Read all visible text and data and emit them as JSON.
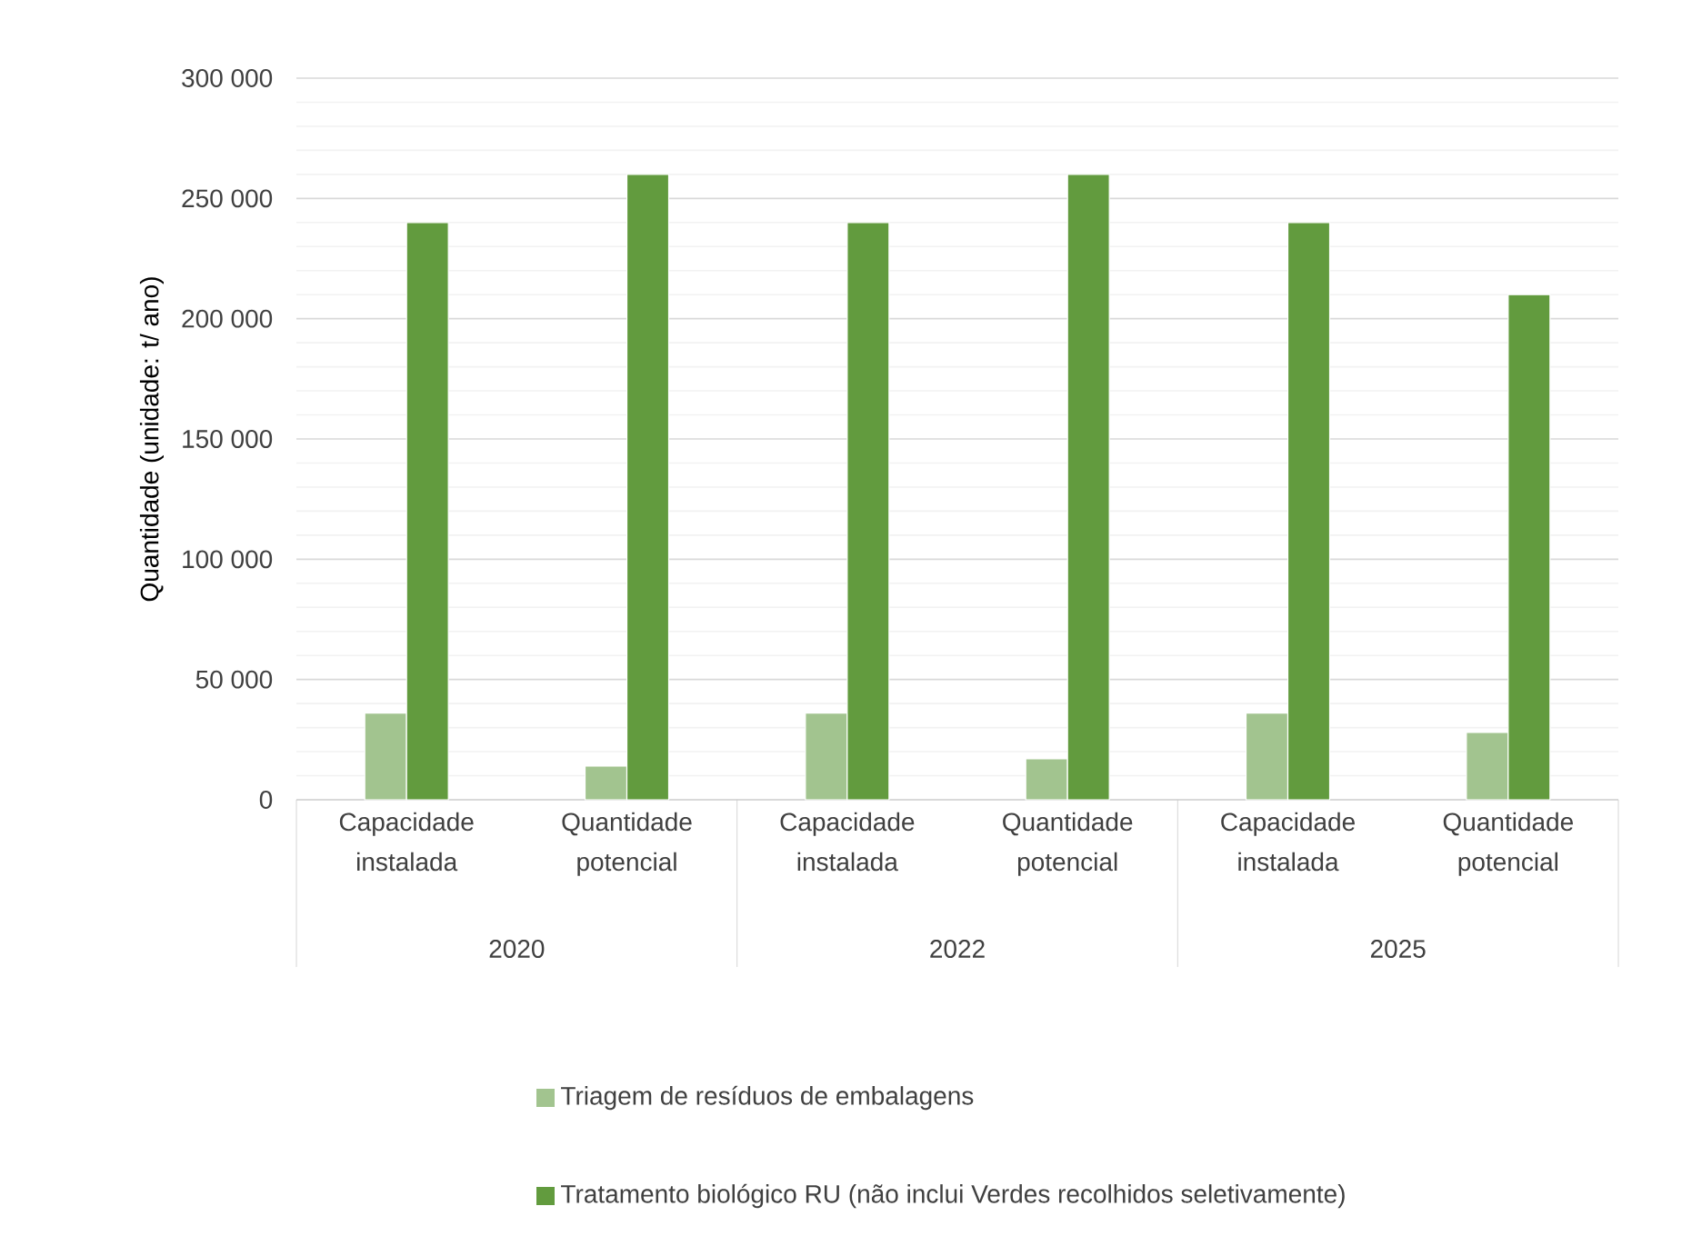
{
  "chart_data": {
    "type": "bar",
    "ylabel": "Quantidade (unidade: t/ ano)",
    "categories": [
      "Capacidade instalada",
      "Quantidade potencial",
      "Capacidade instalada",
      "Quantidade potencial",
      "Capacidade instalada",
      "Quantidade potencial"
    ],
    "series": [
      {
        "name": "Triagem de resíduos de embalagens",
        "color": "#a2c48f",
        "values": [
          36000,
          14000,
          36000,
          17000,
          36000,
          28000
        ]
      },
      {
        "name": "Tratamento biológico RU (não inclui Verdes recolhidos seletivamente)",
        "color": "#629b3e",
        "values": [
          240000,
          260000,
          240000,
          260000,
          240000,
          210000
        ]
      }
    ],
    "ylim": [
      0,
      300000
    ],
    "yticks": [
      {
        "value": 0,
        "label": "0"
      },
      {
        "value": 50000,
        "label": "50 000"
      },
      {
        "value": 100000,
        "label": "100 000"
      },
      {
        "value": 150000,
        "label": "150 000"
      },
      {
        "value": 200000,
        "label": "200 000"
      },
      {
        "value": 250000,
        "label": "250 000"
      },
      {
        "value": 300000,
        "label": "300 000"
      }
    ],
    "annotations": [
      "2020",
      "2022",
      "2025"
    ],
    "grid": "y",
    "legend": "bottom"
  }
}
